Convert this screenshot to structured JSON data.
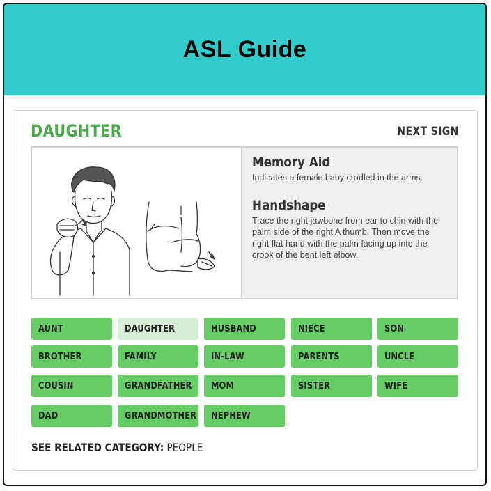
{
  "app": {
    "title": "ASL Guide"
  },
  "sign": {
    "name": "DAUGHTER",
    "next_label": "NEXT SIGN",
    "memory_aid": {
      "heading": "Memory Aid",
      "text": "Indicates a female baby cradled in the arms."
    },
    "handshape": {
      "heading": "Handshape",
      "text": "Trace the right jawbone from ear to chin with the palm side of the right A thumb. Then move the right flat hand with the palm facing up into the crook of the bent left elbow."
    }
  },
  "related_signs": [
    [
      "AUNT",
      "DAUGHTER",
      "HUSBAND",
      "NIECE",
      "SON"
    ],
    [
      "BROTHER",
      "FAMILY",
      "IN-LAW",
      "PARENTS",
      "UNCLE"
    ],
    [
      "COUSIN",
      "GRANDFATHER",
      "MOM",
      "SISTER",
      "WIFE"
    ],
    [
      "DAD",
      "GRANDMOTHER",
      "NEPHEW"
    ]
  ],
  "active_sign": "DAUGHTER",
  "category": {
    "label": "SEE RELATED CATEGORY:",
    "value": "PEOPLE"
  },
  "colors": {
    "header": "#33cccc",
    "accent": "#4caa4c",
    "tag": "#66cc66",
    "tag_active": "#d6eed6"
  }
}
